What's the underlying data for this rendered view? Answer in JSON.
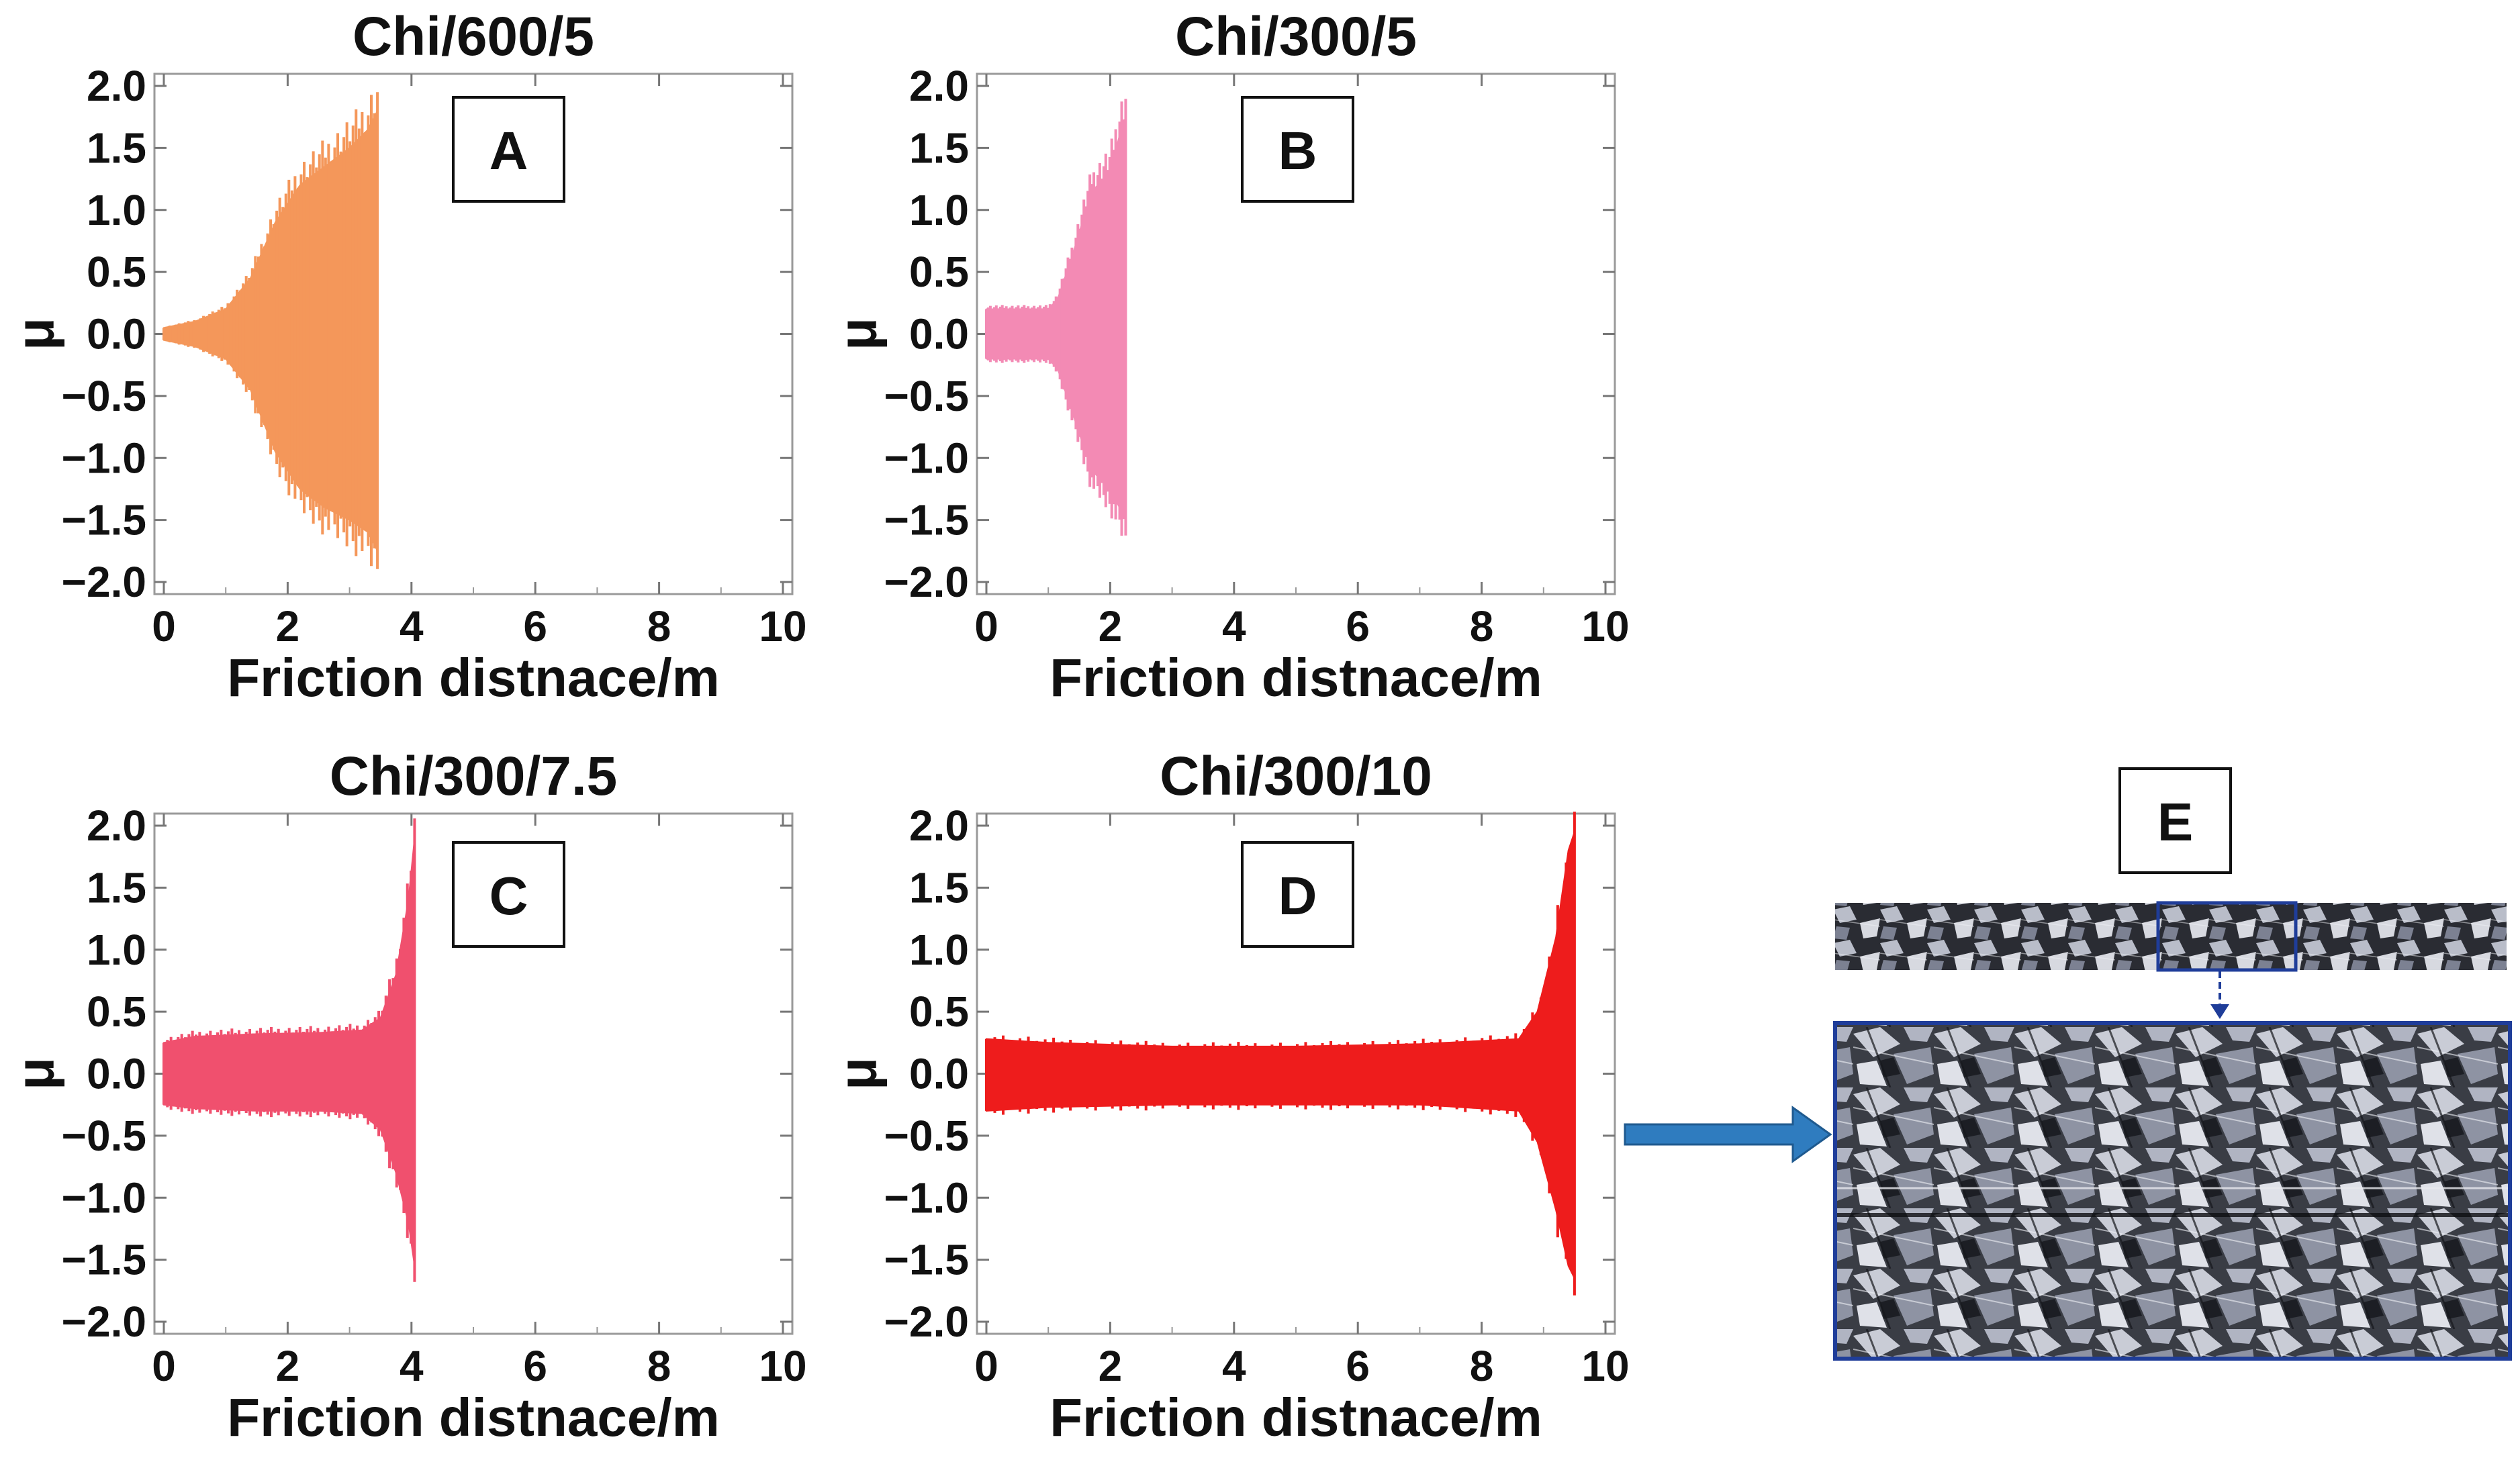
{
  "chart_data": [
    {
      "type": "area",
      "panel_label": "A",
      "title": "Chi/600/5",
      "xlabel": "Friction distnace/m",
      "ylabel": "μ",
      "xlim": [
        0,
        10
      ],
      "ylim": [
        -2.0,
        2.0
      ],
      "xticks": [
        "0",
        "2",
        "4",
        "6",
        "8",
        "10"
      ],
      "yticks": [
        "2.0",
        "1.5",
        "1.0",
        "0.5",
        "0.0",
        "−0.5",
        "−1.0",
        "−1.5",
        "−2.0"
      ],
      "color": "#f4975a",
      "series": [
        {
          "x": [
            0,
            0.5,
            1.0,
            1.4,
            1.8,
            2.2,
            2.6,
            3.0,
            3.3,
            3.45
          ],
          "upper": [
            0.05,
            0.1,
            0.2,
            0.45,
            0.9,
            1.2,
            1.35,
            1.5,
            1.65,
            1.8
          ],
          "lower": [
            -0.05,
            -0.1,
            -0.2,
            -0.45,
            -0.95,
            -1.25,
            -1.4,
            -1.5,
            -1.6,
            -1.75
          ]
        }
      ]
    },
    {
      "type": "area",
      "panel_label": "B",
      "title": "Chi/300/5",
      "xlabel": "Friction distnace/m",
      "ylabel": "μ",
      "xlim": [
        0,
        10
      ],
      "ylim": [
        -2.0,
        2.0
      ],
      "xticks": [
        "0",
        "2",
        "4",
        "6",
        "8",
        "10"
      ],
      "yticks": [
        "2.0",
        "1.5",
        "1.0",
        "0.5",
        "0.0",
        "−0.5",
        "−1.0",
        "−1.5",
        "−2.0"
      ],
      "color": "#f38ab4",
      "series": [
        {
          "x": [
            0,
            0.5,
            1.0,
            1.15,
            1.4,
            1.7,
            2.0,
            2.15,
            2.25
          ],
          "upper": [
            0.2,
            0.2,
            0.2,
            0.28,
            0.65,
            1.15,
            1.3,
            1.6,
            1.75
          ],
          "lower": [
            -0.2,
            -0.2,
            -0.2,
            -0.28,
            -0.65,
            -1.1,
            -1.25,
            -1.4,
            -1.5
          ]
        }
      ]
    },
    {
      "type": "area",
      "panel_label": "C",
      "title": "Chi/300/7.5",
      "xlabel": "Friction distnace/m",
      "ylabel": "μ",
      "xlim": [
        0,
        10
      ],
      "ylim": [
        -2.0,
        2.0
      ],
      "xticks": [
        "0",
        "2",
        "4",
        "6",
        "8",
        "10"
      ],
      "yticks": [
        "2.0",
        "1.5",
        "1.0",
        "0.5",
        "0.0",
        "−0.5",
        "−1.0",
        "−1.5",
        "−2.0"
      ],
      "color": "#f0506e",
      "series": [
        {
          "x": [
            0,
            0.5,
            1.5,
            2.5,
            3.2,
            3.5,
            3.75,
            3.95,
            4.05
          ],
          "upper": [
            0.25,
            0.3,
            0.32,
            0.33,
            0.35,
            0.45,
            0.8,
            1.4,
            1.9
          ],
          "lower": [
            -0.25,
            -0.28,
            -0.3,
            -0.3,
            -0.32,
            -0.45,
            -0.8,
            -1.2,
            -1.55
          ]
        }
      ]
    },
    {
      "type": "area",
      "panel_label": "D",
      "title": "Chi/300/10",
      "xlabel": "Friction distnace/m",
      "ylabel": "μ",
      "xlim": [
        0,
        10
      ],
      "ylim": [
        -2.0,
        2.0
      ],
      "xticks": [
        "0",
        "2",
        "4",
        "6",
        "8",
        "10"
      ],
      "yticks": [
        "2.0",
        "1.5",
        "1.0",
        "0.5",
        "0.0",
        "−0.5",
        "−1.0",
        "−1.5",
        "−2.0"
      ],
      "color": "#ee1c1c",
      "series": [
        {
          "x": [
            0,
            1.0,
            3.0,
            5.0,
            7.0,
            8.6,
            8.9,
            9.2,
            9.4,
            9.5
          ],
          "upper": [
            0.28,
            0.25,
            0.22,
            0.22,
            0.24,
            0.28,
            0.5,
            1.1,
            1.8,
            1.95
          ],
          "lower": [
            -0.3,
            -0.27,
            -0.25,
            -0.25,
            -0.25,
            -0.3,
            -0.55,
            -1.1,
            -1.55,
            -1.65
          ]
        }
      ]
    }
  ],
  "micrograph": {
    "panel_label": "E",
    "arrow_color": "#2f7cbf",
    "frame_color": "#1f3d99"
  }
}
